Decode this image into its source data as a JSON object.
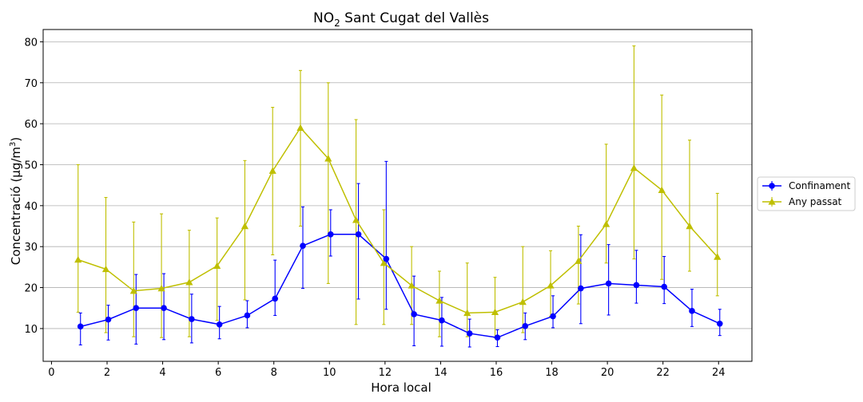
{
  "chart_data": {
    "type": "line",
    "title": {
      "main": "NO",
      "sub": "2",
      "rest": " Sant Cugat del Vallès"
    },
    "xlabel": "Hora local",
    "ylabel": {
      "pre": "Concentració (µg/m",
      "sup": "3",
      "post": ")"
    },
    "xlim": [
      -0.3,
      25.2
    ],
    "ylim": [
      2,
      83
    ],
    "xticks": [
      0,
      2,
      4,
      6,
      8,
      10,
      12,
      14,
      16,
      18,
      20,
      22,
      24
    ],
    "yticks": [
      10,
      20,
      30,
      40,
      50,
      60,
      70,
      80
    ],
    "grid": "horizontal",
    "legend_position": "right",
    "x": [
      1,
      2,
      3,
      4,
      5,
      6,
      7,
      8,
      9,
      10,
      11,
      12,
      13,
      14,
      15,
      16,
      17,
      18,
      19,
      20,
      21,
      22,
      23,
      24
    ],
    "series": [
      {
        "name": "Confinament",
        "color": "#0000ff",
        "marker": "circle",
        "values": [
          10.5,
          12.2,
          15.0,
          15.0,
          12.3,
          11.0,
          13.2,
          17.3,
          30.2,
          33.0,
          33.0,
          27.0,
          13.5,
          12.0,
          8.8,
          7.8,
          10.6,
          13.0,
          19.8,
          21.0,
          20.6,
          20.2,
          14.3,
          11.2
        ],
        "err_low": [
          6.0,
          7.2,
          6.2,
          7.3,
          6.5,
          7.5,
          10.2,
          13.2,
          19.8,
          27.7,
          17.2,
          14.7,
          5.8,
          5.7,
          5.5,
          5.6,
          7.3,
          10.2,
          11.2,
          13.3,
          16.2,
          16.1,
          10.5,
          8.3
        ],
        "err_high": [
          13.8,
          15.7,
          23.2,
          23.4,
          18.4,
          15.4,
          16.8,
          26.7,
          39.7,
          39.0,
          45.4,
          50.8,
          22.8,
          17.6,
          12.3,
          9.7,
          13.8,
          18.0,
          32.9,
          30.5,
          29.1,
          27.6,
          19.6,
          14.7
        ]
      },
      {
        "name": "Any passat",
        "color": "#bfbf00",
        "marker": "triangle",
        "values": [
          26.8,
          24.5,
          19.2,
          19.8,
          21.3,
          25.3,
          35.0,
          48.5,
          59.0,
          51.5,
          36.5,
          26.0,
          20.5,
          16.8,
          13.8,
          14.0,
          16.5,
          20.5,
          26.5,
          35.5,
          49.2,
          43.8,
          35.0,
          27.5
        ],
        "err_low": [
          14.0,
          9.0,
          8.0,
          7.8,
          8.0,
          12.0,
          17.0,
          28.0,
          35.0,
          21.0,
          11.0,
          11.0,
          11.0,
          8.0,
          8.0,
          7.8,
          9.0,
          13.0,
          16.0,
          26.0,
          27.0,
          22.0,
          24.0,
          18.0
        ],
        "err_high": [
          50.0,
          42.0,
          36.0,
          38.0,
          34.0,
          37.0,
          51.0,
          64.0,
          73.0,
          70.0,
          61.0,
          39.0,
          30.0,
          24.0,
          26.0,
          22.5,
          30.0,
          29.0,
          35.0,
          55.0,
          79.0,
          67.0,
          56.0,
          43.0
        ]
      }
    ]
  }
}
